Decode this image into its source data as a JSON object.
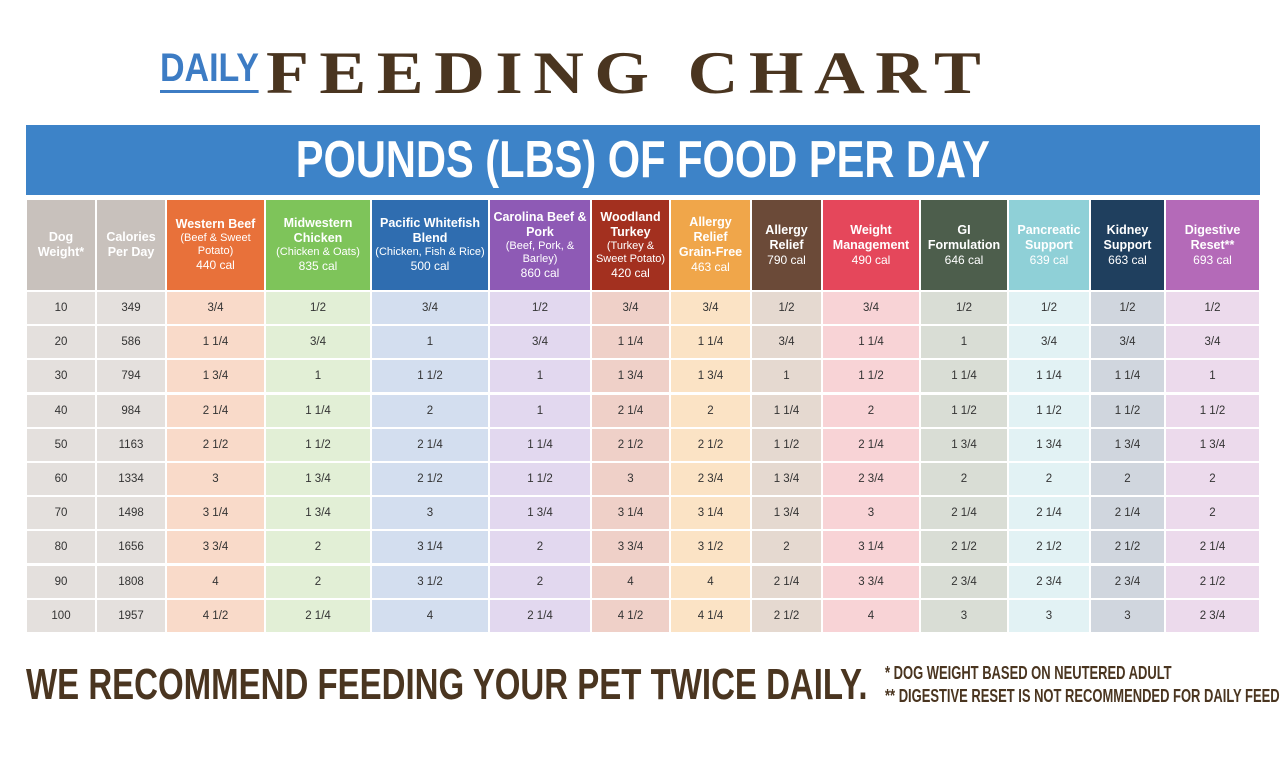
{
  "header": {
    "prefix": "DAILY",
    "title": "FEEDING CHART"
  },
  "banner": "POUNDS (LBS) OF FOOD PER DAY",
  "table": {
    "columns": [
      {
        "name": "Dog Weight*",
        "color": "#c8c1bc",
        "cell_color": "#e4e0dd"
      },
      {
        "name": "Calories Per Day",
        "color": "#c8c1bc",
        "cell_color": "#e4e0dd"
      },
      {
        "name": "Western Beef",
        "detail": "(Beef & Sweet Potato)",
        "calories": "440 cal",
        "color": "#e8713a",
        "cell_color": "#f9dac9"
      },
      {
        "name": "Midwestern Chicken",
        "detail": "(Chicken & Oats)",
        "calories": "835 cal",
        "color": "#7ec45a",
        "cell_color": "#e2efd6"
      },
      {
        "name": "Pacific Whitefish Blend",
        "detail": "(Chicken, Fish & Rice)",
        "calories": "500 cal",
        "color": "#2f6db0",
        "cell_color": "#d3deef"
      },
      {
        "name": "Carolina Beef & Pork",
        "detail": "(Beef, Pork, & Barley)",
        "calories": "860 cal",
        "color": "#8e5ab5",
        "cell_color": "#e2d8ef"
      },
      {
        "name": "Woodland Turkey",
        "detail": "(Turkey & Sweet Potato)",
        "calories": "420 cal",
        "color": "#a3301f",
        "cell_color": "#efd0c8"
      },
      {
        "name": "Allergy Relief Grain-Free",
        "calories": "463 cal",
        "color": "#f0a64a",
        "cell_color": "#fbe3c5"
      },
      {
        "name": "Allergy Relief",
        "calories": "790 cal",
        "color": "#6b4a38",
        "cell_color": "#e5d9d0"
      },
      {
        "name": "Weight Management",
        "calories": "490 cal",
        "color": "#e5475b",
        "cell_color": "#f8d3d6"
      },
      {
        "name": "GI Formulation",
        "calories": "646 cal",
        "color": "#4d5e4c",
        "cell_color": "#d9ddd5"
      },
      {
        "name": "Pancreatic Support",
        "calories": "639 cal",
        "color": "#8fd0d7",
        "cell_color": "#e2f2f4"
      },
      {
        "name": "Kidney Support",
        "calories": "663 cal",
        "color": "#1f3f5e",
        "cell_color": "#d0d6de"
      },
      {
        "name": "Digestive Reset**",
        "calories": "693 cal",
        "color": "#b46ab8",
        "cell_color": "#ecdaec"
      }
    ],
    "rows": [
      [
        "10",
        "349",
        "3/4",
        "1/2",
        "3/4",
        "1/2",
        "3/4",
        "3/4",
        "1/2",
        "3/4",
        "1/2",
        "1/2",
        "1/2",
        "1/2"
      ],
      [
        "20",
        "586",
        "1 1/4",
        "3/4",
        "1",
        "3/4",
        "1 1/4",
        "1 1/4",
        "3/4",
        "1 1/4",
        "1",
        "3/4",
        "3/4",
        "3/4"
      ],
      [
        "30",
        "794",
        "1 3/4",
        "1",
        "1 1/2",
        "1",
        "1 3/4",
        "1 3/4",
        "1",
        "1 1/2",
        "1 1/4",
        "1 1/4",
        "1 1/4",
        "1"
      ],
      [
        "40",
        "984",
        "2 1/4",
        "1 1/4",
        "2",
        "1",
        "2 1/4",
        "2",
        "1 1/4",
        "2",
        "1 1/2",
        "1 1/2",
        "1 1/2",
        "1 1/2"
      ],
      [
        "50",
        "1163",
        "2 1/2",
        "1 1/2",
        "2 1/4",
        "1 1/4",
        "2 1/2",
        "2 1/2",
        "1 1/2",
        "2 1/4",
        "1 3/4",
        "1 3/4",
        "1 3/4",
        "1 3/4"
      ],
      [
        "60",
        "1334",
        "3",
        "1 3/4",
        "2 1/2",
        "1 1/2",
        "3",
        "2 3/4",
        "1 3/4",
        "2 3/4",
        "2",
        "2",
        "2",
        "2"
      ],
      [
        "70",
        "1498",
        "3 1/4",
        "1 3/4",
        "3",
        "1 3/4",
        "3 1/4",
        "3 1/4",
        "1 3/4",
        "3",
        "2 1/4",
        "2 1/4",
        "2 1/4",
        "2"
      ],
      [
        "80",
        "1656",
        "3 3/4",
        "2",
        "3 1/4",
        "2",
        "3 3/4",
        "3 1/2",
        "2",
        "3 1/4",
        "2 1/2",
        "2 1/2",
        "2 1/2",
        "2 1/4"
      ],
      [
        "90",
        "1808",
        "4",
        "2",
        "3 1/2",
        "2",
        "4",
        "4",
        "2 1/4",
        "3 3/4",
        "2 3/4",
        "2 3/4",
        "2 3/4",
        "2 1/2"
      ],
      [
        "100",
        "1957",
        "4 1/2",
        "2 1/4",
        "4",
        "2 1/4",
        "4 1/2",
        "4 1/4",
        "2 1/2",
        "4",
        "3",
        "3",
        "3",
        "2 3/4"
      ]
    ]
  },
  "footer": {
    "recommendation": "WE RECOMMEND FEEDING YOUR PET TWICE DAILY.",
    "notes": [
      "* DOG WEIGHT BASED ON NEUTERED ADULT",
      "** DIGESTIVE RESET IS NOT RECOMMENDED FOR DAILY FEEDING"
    ]
  }
}
